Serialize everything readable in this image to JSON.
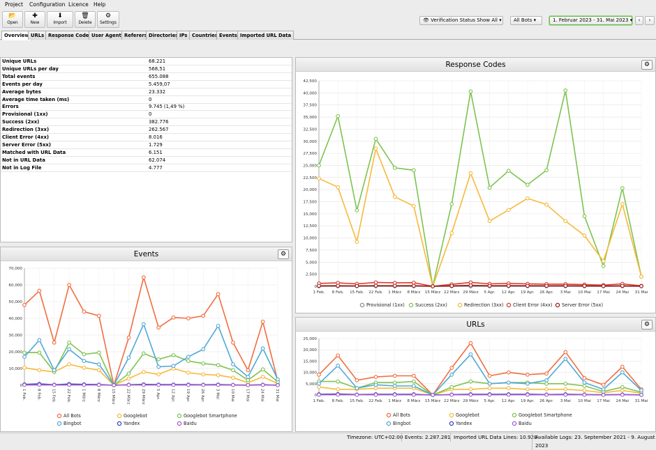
{
  "menu": [
    "Project",
    "Configuration",
    "Licence",
    "Help"
  ],
  "toolbar": {
    "open": "Open",
    "new": "New",
    "import": "Import",
    "delete": "Delete",
    "settings": "Settings"
  },
  "filters": {
    "verification": "Verification Status Show All",
    "bots": "All Bots",
    "date_range": "1. Februar 2023 - 31. Mai 2023"
  },
  "tabs": [
    "Overview",
    "URLs",
    "Response Codes",
    "User Agents",
    "Referers",
    "Directories",
    "IPs",
    "Countries",
    "Events",
    "Imported URL Data"
  ],
  "stats": [
    {
      "label": "Unique URLs",
      "value": "68.221"
    },
    {
      "label": "Unique URLs per day",
      "value": "568,51"
    },
    {
      "label": "Total events",
      "value": "655.088"
    },
    {
      "label": "Events per day",
      "value": "5.459,07"
    },
    {
      "label": "Average bytes",
      "value": "23.332"
    },
    {
      "label": "Average time taken (ms)",
      "value": "0"
    },
    {
      "label": "Errors",
      "value": "9.745 (1,49 %)"
    },
    {
      "label": "Provisional (1xx)",
      "value": "0"
    },
    {
      "label": "Success (2xx)",
      "value": "382.776"
    },
    {
      "label": "Redirection (3xx)",
      "value": "262.567"
    },
    {
      "label": "Client Error (4xx)",
      "value": "8.016"
    },
    {
      "label": "Server Error (5xx)",
      "value": "1.729"
    },
    {
      "label": "Matched with URL Data",
      "value": "6.151"
    },
    {
      "label": "Not in URL Data",
      "value": "62.074"
    },
    {
      "label": "Not in Log File",
      "value": "4.777"
    }
  ],
  "colors": {
    "orange": "#f16d3f",
    "yellow": "#f6b93b",
    "green": "#7dc34f",
    "blue": "#4fa8d8",
    "navy": "#3b3fb0",
    "purple": "#a25bd0",
    "gray": "#8e8e8e",
    "red": "#d83b2e",
    "darkred": "#9e1b1b"
  },
  "chart_data": [
    {
      "id": "response_codes",
      "type": "line",
      "title": "Response Codes",
      "x": [
        "1 Feb.",
        "8 Feb.",
        "15 Feb.",
        "22 Feb.",
        "1 März",
        "8 März",
        "15 März",
        "22 März",
        "29 März",
        "5 Apr.",
        "12 Apr.",
        "19 Apr.",
        "26 Apr.",
        "3 Mai",
        "10 Mai",
        "17 Mai",
        "24 Mai",
        "31 Mai"
      ],
      "ylim": [
        0,
        42500
      ],
      "yticks": [
        0,
        2500,
        5000,
        7500,
        10000,
        12500,
        15000,
        17500,
        20000,
        22500,
        25000,
        27500,
        30000,
        32500,
        35000,
        37500,
        40000,
        42500
      ],
      "ytick_labels": [
        "0",
        "2,500",
        "5,000",
        "7,500",
        "10,000",
        "12,500",
        "15,000",
        "17,500",
        "20,000",
        "22,500",
        "25,000",
        "27,500",
        "30,000",
        "32,500",
        "35,000",
        "37,500",
        "40,000",
        "42,500"
      ],
      "series": [
        {
          "name": "Provisional (1xx)",
          "color": "#8e8e8e",
          "values": [
            0,
            0,
            0,
            0,
            0,
            0,
            0,
            0,
            0,
            0,
            0,
            0,
            0,
            0,
            0,
            0,
            0,
            0
          ]
        },
        {
          "name": "Success (2xx)",
          "color": "#7dc34f",
          "values": [
            25000,
            35200,
            15700,
            30500,
            24500,
            24000,
            0,
            17000,
            40300,
            20400,
            23900,
            21000,
            24000,
            40500,
            14500,
            4200,
            20300,
            2000
          ]
        },
        {
          "name": "Redirection (3xx)",
          "color": "#f6b93b",
          "values": [
            22300,
            20500,
            9200,
            28500,
            18500,
            16600,
            0,
            11000,
            23400,
            13500,
            15800,
            18200,
            16900,
            13500,
            10500,
            5200,
            17000,
            2000
          ]
        },
        {
          "name": "Client Error (4xx)",
          "color": "#d83b2e",
          "values": [
            600,
            700,
            500,
            800,
            700,
            750,
            0,
            400,
            800,
            500,
            600,
            500,
            450,
            450,
            350,
            250,
            500,
            100
          ]
        },
        {
          "name": "Server Error (5xx)",
          "color": "#9e1b1b",
          "values": [
            100,
            120,
            80,
            150,
            120,
            130,
            0,
            100,
            200,
            120,
            130,
            110,
            100,
            110,
            90,
            60,
            100,
            30
          ]
        }
      ]
    },
    {
      "id": "events",
      "type": "line",
      "title": "Events",
      "x": [
        "1 Feb.",
        "8 Feb.",
        "15 Feb.",
        "22 Feb.",
        "1 März",
        "8 März",
        "15 März",
        "22 März",
        "29 März",
        "5 Apr.",
        "12 Apr.",
        "19 Apr.",
        "26 Apr.",
        "3 Mai",
        "10 Mai",
        "17 Mai",
        "24 Mai",
        "31 Mai"
      ],
      "ylim": [
        0,
        70000
      ],
      "yticks": [
        0,
        10000,
        20000,
        30000,
        40000,
        50000,
        60000,
        70000
      ],
      "ytick_labels": [
        "0",
        "10,000",
        "20,000",
        "30,000",
        "40,000",
        "50,000",
        "60,000",
        "70,000"
      ],
      "series": [
        {
          "name": "All Bots",
          "color": "#f16d3f",
          "values": [
            48000,
            56500,
            25500,
            60000,
            44000,
            41500,
            0,
            28500,
            64500,
            34500,
            40500,
            40000,
            41500,
            54500,
            25500,
            9000,
            38000,
            2500
          ]
        },
        {
          "name": "Googlebot",
          "color": "#f6b93b",
          "values": [
            10500,
            9000,
            8000,
            12500,
            10500,
            9000,
            0,
            4000,
            8000,
            6500,
            10000,
            7500,
            6500,
            6000,
            4500,
            1500,
            5000,
            1000
          ]
        },
        {
          "name": "Googlebot Smartphone",
          "color": "#7dc34f",
          "values": [
            19500,
            19500,
            8000,
            25500,
            18500,
            19500,
            0,
            7000,
            19000,
            15500,
            18000,
            14500,
            13000,
            12000,
            9000,
            3000,
            9500,
            2000
          ]
        },
        {
          "name": "Bingbot",
          "color": "#4fa8d8",
          "values": [
            17000,
            27000,
            9000,
            21500,
            14500,
            12500,
            0,
            16500,
            36500,
            11000,
            11500,
            17000,
            21500,
            35500,
            12500,
            5000,
            22000,
            3500
          ]
        },
        {
          "name": "Yandex",
          "color": "#3b3fb0",
          "values": [
            500,
            800,
            300,
            700,
            500,
            400,
            0,
            300,
            500,
            400,
            400,
            400,
            300,
            400,
            200,
            100,
            300,
            50
          ]
        },
        {
          "name": "Baidu",
          "color": "#a25bd0",
          "values": [
            200,
            300,
            150,
            250,
            200,
            200,
            0,
            150,
            200,
            150,
            150,
            150,
            150,
            150,
            100,
            50,
            150,
            20
          ]
        }
      ]
    },
    {
      "id": "urls",
      "type": "line",
      "title": "URLs",
      "x": [
        "1 Feb.",
        "8 Feb.",
        "15 Feb.",
        "22 Feb.",
        "1 März",
        "8 März",
        "15 März",
        "22 März",
        "29 März",
        "5 Apr.",
        "12 Apr.",
        "19 Apr.",
        "26 Apr.",
        "3 Mai",
        "10 Mai",
        "17 Mai",
        "24 Mai",
        "31 Mai"
      ],
      "ylim": [
        0,
        25000
      ],
      "yticks": [
        0,
        5000,
        10000,
        15000,
        20000,
        25000
      ],
      "ytick_labels": [
        "0",
        "5,000",
        "10,000",
        "15,000",
        "20,000",
        "25,000"
      ],
      "series": [
        {
          "name": "All Bots",
          "color": "#f16d3f",
          "values": [
            9000,
            17500,
            6500,
            8000,
            8500,
            8500,
            0,
            12000,
            23000,
            8500,
            10000,
            9000,
            9500,
            19000,
            7500,
            4500,
            12500,
            2500
          ]
        },
        {
          "name": "Googlebot",
          "color": "#f6b93b",
          "values": [
            3500,
            2500,
            2500,
            3000,
            3000,
            3000,
            0,
            2500,
            2500,
            3000,
            3000,
            2500,
            2500,
            2500,
            2000,
            1000,
            2000,
            800
          ]
        },
        {
          "name": "Googlebot Smartphone",
          "color": "#7dc34f",
          "values": [
            6000,
            6000,
            3000,
            5500,
            5500,
            6000,
            0,
            3500,
            6000,
            5000,
            5500,
            5500,
            5000,
            5000,
            4000,
            1500,
            3500,
            1200
          ]
        },
        {
          "name": "Bingbot",
          "color": "#4fa8d8",
          "values": [
            5000,
            13000,
            3000,
            4500,
            4000,
            4000,
            0,
            9000,
            18000,
            5000,
            5500,
            5000,
            6500,
            16000,
            5500,
            2500,
            10000,
            2000
          ]
        },
        {
          "name": "Yandex",
          "color": "#3b3fb0",
          "values": [
            300,
            400,
            200,
            300,
            300,
            300,
            0,
            200,
            300,
            300,
            300,
            300,
            200,
            300,
            200,
            100,
            200,
            50
          ]
        },
        {
          "name": "Baidu",
          "color": "#a25bd0",
          "values": [
            100,
            150,
            80,
            100,
            100,
            100,
            0,
            80,
            100,
            100,
            100,
            100,
            80,
            100,
            80,
            40,
            80,
            20
          ]
        }
      ]
    }
  ],
  "status": {
    "timezone": "Timezone:  UTC+02:00",
    "events": "Events:  2.287.281",
    "imported": "Imported URL Data Lines:  10.928",
    "logs": "Available Logs:  23. September 2021 - 9. August 2023"
  }
}
